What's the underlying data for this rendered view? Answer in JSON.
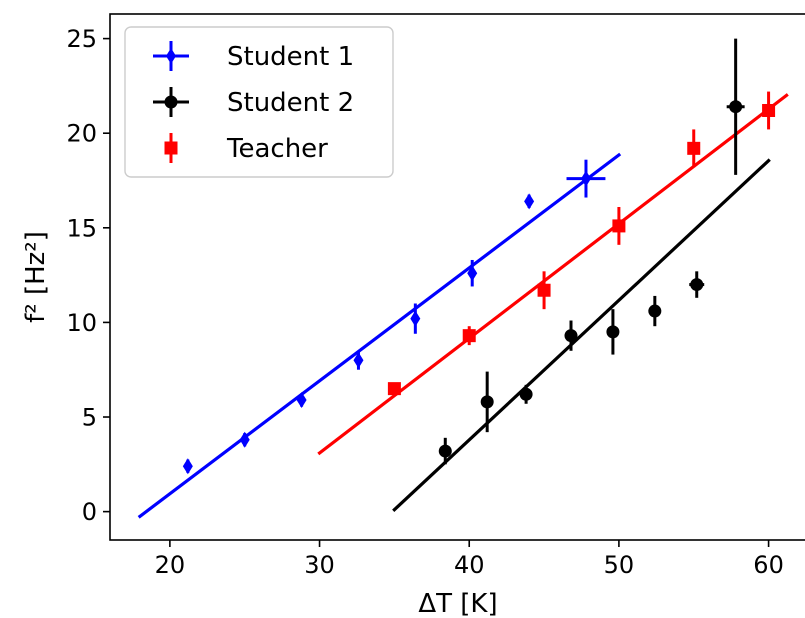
{
  "chart_data": {
    "type": "scatter",
    "xlabel": "ΔT [K]",
    "ylabel": "f² [Hz²]",
    "xlim": [
      16,
      62.5
    ],
    "ylim": [
      -1.5,
      26.3
    ],
    "x_ticks": [
      20,
      30,
      40,
      50,
      60
    ],
    "y_ticks": [
      0,
      5,
      10,
      15,
      20,
      25
    ],
    "grid": false,
    "legend_position": "top-left",
    "series": [
      {
        "name": "Student 1",
        "color": "#0000ff",
        "marker": "diamond",
        "points": [
          {
            "x": 21.2,
            "y": 2.4,
            "xerr": 0.0,
            "yerr": 0.35
          },
          {
            "x": 25.0,
            "y": 3.8,
            "xerr": 0.0,
            "yerr": 0.35
          },
          {
            "x": 28.8,
            "y": 5.9,
            "xerr": 0.0,
            "yerr": 0.35
          },
          {
            "x": 32.6,
            "y": 8.0,
            "xerr": 0.0,
            "yerr": 0.5
          },
          {
            "x": 36.4,
            "y": 10.2,
            "xerr": 0.0,
            "yerr": 0.8
          },
          {
            "x": 40.2,
            "y": 12.6,
            "xerr": 0.0,
            "yerr": 0.7
          },
          {
            "x": 44.0,
            "y": 16.4,
            "xerr": 0.0,
            "yerr": 0.35
          },
          {
            "x": 47.8,
            "y": 17.6,
            "xerr": 1.3,
            "yerr": 1.0
          }
        ],
        "fit": {
          "x": [
            18,
            50
          ],
          "y": [
            -0.25,
            18.85
          ]
        }
      },
      {
        "name": "Student 2",
        "color": "#000000",
        "marker": "circle",
        "points": [
          {
            "x": 38.4,
            "y": 3.2,
            "xerr": 0.0,
            "yerr": 0.7
          },
          {
            "x": 41.2,
            "y": 5.8,
            "xerr": 0.0,
            "yerr": 1.6
          },
          {
            "x": 43.8,
            "y": 6.2,
            "xerr": 0.0,
            "yerr": 0.5
          },
          {
            "x": 46.8,
            "y": 9.3,
            "xerr": 0.0,
            "yerr": 0.8
          },
          {
            "x": 49.6,
            "y": 9.5,
            "xerr": 0.0,
            "yerr": 1.2
          },
          {
            "x": 52.4,
            "y": 10.6,
            "xerr": 0.0,
            "yerr": 0.8
          },
          {
            "x": 55.2,
            "y": 12.0,
            "xerr": 0.5,
            "yerr": 0.7
          },
          {
            "x": 57.8,
            "y": 21.4,
            "xerr": 0.6,
            "yerr": 3.6
          }
        ],
        "fit": {
          "x": [
            35,
            60
          ],
          "y": [
            0.1,
            18.55
          ]
        }
      },
      {
        "name": "Teacher",
        "color": "#ff0000",
        "marker": "square",
        "points": [
          {
            "x": 35.0,
            "y": 6.5,
            "xerr": 0.0,
            "yerr": 0.3
          },
          {
            "x": 40.0,
            "y": 9.3,
            "xerr": 0.0,
            "yerr": 0.5
          },
          {
            "x": 45.0,
            "y": 11.7,
            "xerr": 0.0,
            "yerr": 1.0
          },
          {
            "x": 50.0,
            "y": 15.1,
            "xerr": 0.0,
            "yerr": 1.0
          },
          {
            "x": 55.0,
            "y": 19.2,
            "xerr": 0.0,
            "yerr": 1.0
          },
          {
            "x": 60.0,
            "y": 21.2,
            "xerr": 0.0,
            "yerr": 1.0
          }
        ],
        "fit": {
          "x": [
            30,
            61.2
          ],
          "y": [
            3.1,
            22.0
          ]
        }
      }
    ]
  }
}
